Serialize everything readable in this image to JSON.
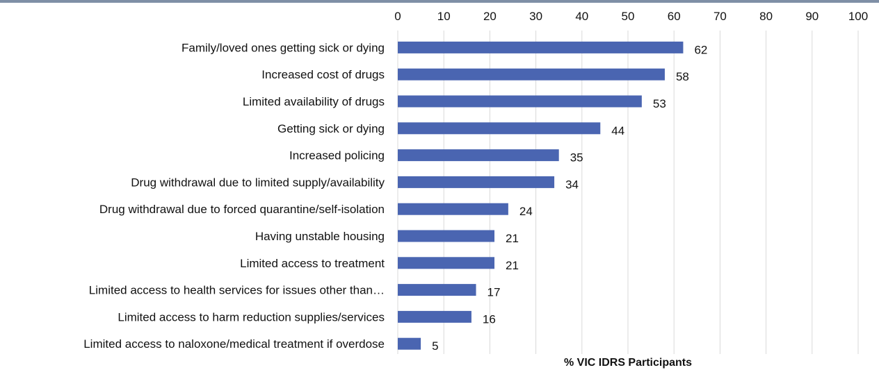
{
  "colors": {
    "bar": "#4a65b1",
    "grid": "#d9d9d9",
    "topline": "#7f8fa6"
  },
  "chart_data": {
    "type": "bar",
    "orientation": "horizontal",
    "categories": [
      "Family/loved ones getting sick or dying",
      "Increased cost of drugs",
      "Limited availability of drugs",
      "Getting sick or dying",
      "Increased policing",
      "Drug withdrawal due to limited supply/availability",
      "Drug withdrawal due to forced quarantine/self-isolation",
      "Having unstable housing",
      "Limited access to treatment",
      "Limited access to health services for issues other than…",
      "Limited access to harm reduction supplies/services",
      "Limited access to naloxone/medical treatment if overdose"
    ],
    "values": [
      62,
      58,
      53,
      44,
      35,
      34,
      24,
      21,
      21,
      17,
      16,
      5
    ],
    "data_labels": [
      "62",
      "58",
      "53",
      "44",
      "35",
      "34",
      "24",
      "21",
      "21",
      "17",
      "16",
      "5"
    ],
    "xlabel": "% VIC IDRS Participants",
    "ylabel": "",
    "xlim": [
      0,
      100
    ],
    "xticks": [
      "0",
      "10",
      "20",
      "30",
      "40",
      "50",
      "60",
      "70",
      "80",
      "90",
      "100"
    ],
    "x_axis_position": "top",
    "grid": true,
    "legend": "none"
  }
}
